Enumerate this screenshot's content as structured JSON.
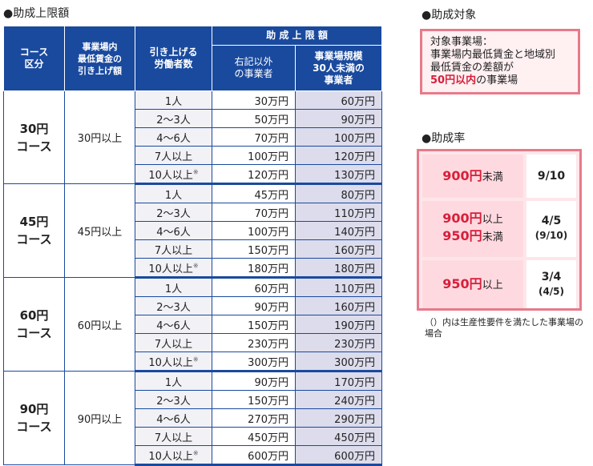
{
  "limits": {
    "title": "●助成上限額",
    "headers": {
      "course": "コース\n区分",
      "wage": "事業場内\n最低賃金の\n引き上げ額",
      "workers": "引き上げる\n労働者数",
      "limit": "助 成 上 限 額",
      "other": "右記以外\nの事業者",
      "small": "事業場規模\n30人未満の\n事業者"
    },
    "note_mark": "※",
    "groups": [
      {
        "course": "30円\nコース",
        "wage": "30円以上",
        "rows": [
          {
            "workers": "1人",
            "other": "30万円",
            "small": "60万円"
          },
          {
            "workers": "2～3人",
            "other": "50万円",
            "small": "90万円"
          },
          {
            "workers": "4～6人",
            "other": "70万円",
            "small": "100万円"
          },
          {
            "workers": "7人以上",
            "other": "100万円",
            "small": "120万円"
          },
          {
            "workers": "10人以上",
            "other": "120万円",
            "small": "130万円"
          }
        ]
      },
      {
        "course": "45円\nコース",
        "wage": "45円以上",
        "rows": [
          {
            "workers": "1人",
            "other": "45万円",
            "small": "80万円"
          },
          {
            "workers": "2～3人",
            "other": "70万円",
            "small": "110万円"
          },
          {
            "workers": "4～6人",
            "other": "100万円",
            "small": "140万円"
          },
          {
            "workers": "7人以上",
            "other": "150万円",
            "small": "160万円"
          },
          {
            "workers": "10人以上",
            "other": "180万円",
            "small": "180万円"
          }
        ]
      },
      {
        "course": "60円\nコース",
        "wage": "60円以上",
        "rows": [
          {
            "workers": "1人",
            "other": "60万円",
            "small": "110万円"
          },
          {
            "workers": "2～3人",
            "other": "90万円",
            "small": "160万円"
          },
          {
            "workers": "4～6人",
            "other": "150万円",
            "small": "190万円"
          },
          {
            "workers": "7人以上",
            "other": "230万円",
            "small": "230万円"
          },
          {
            "workers": "10人以上",
            "other": "300万円",
            "small": "300万円"
          }
        ]
      },
      {
        "course": "90円\nコース",
        "wage": "90円以上",
        "rows": [
          {
            "workers": "1人",
            "other": "90万円",
            "small": "170万円"
          },
          {
            "workers": "2～3人",
            "other": "150万円",
            "small": "240万円"
          },
          {
            "workers": "4～6人",
            "other": "270万円",
            "small": "290万円"
          },
          {
            "workers": "7人以上",
            "other": "450万円",
            "small": "450万円"
          },
          {
            "workers": "10人以上",
            "other": "600万円",
            "small": "600万円"
          }
        ]
      }
    ]
  },
  "target": {
    "title": "●助成対象",
    "line1": "対象事業場：",
    "line2": "事業場内最低賃金と地域別",
    "line3": "最低賃金の差額が",
    "line4_red": "50円以内",
    "line4_rest": "の事業場"
  },
  "rate": {
    "title": "●助成率",
    "rows": [
      {
        "a_num": "900円",
        "a_suffix": "未満",
        "b_num": "",
        "b_suffix": "",
        "rate": "9/10",
        "rate_sub": ""
      },
      {
        "a_num": "900円",
        "a_suffix": "以上",
        "b_num": "950円",
        "b_suffix": "未満",
        "rate": "4/5",
        "rate_sub": "(9/10)"
      },
      {
        "a_num": "950円",
        "a_suffix": "以上",
        "b_num": "",
        "b_suffix": "",
        "rate": "3/4",
        "rate_sub": "(4/5)"
      }
    ],
    "note": "（）内は生産性要件を満たした事業場の場合"
  }
}
